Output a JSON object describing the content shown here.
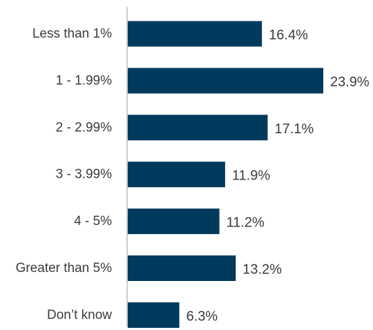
{
  "colors": {
    "bar": "#003a5d",
    "axis": "#9a9a9a",
    "text": "#3b3b3b"
  },
  "chart_data": {
    "type": "bar",
    "orientation": "horizontal",
    "categories": [
      "Less than 1%",
      "1 - 1.99%",
      "2 - 2.99%",
      "3 - 3.99%",
      "4 - 5%",
      "Greater than 5%",
      "Don’t know"
    ],
    "values": [
      16.4,
      23.9,
      17.1,
      11.9,
      11.2,
      13.2,
      6.3
    ],
    "value_labels": [
      "16.4%",
      "23.9%",
      "17.1%",
      "11.9%",
      "11.2%",
      "13.2%",
      "6.3%"
    ],
    "xlim": [
      0,
      23.9
    ],
    "grid": false,
    "legend": "none"
  }
}
